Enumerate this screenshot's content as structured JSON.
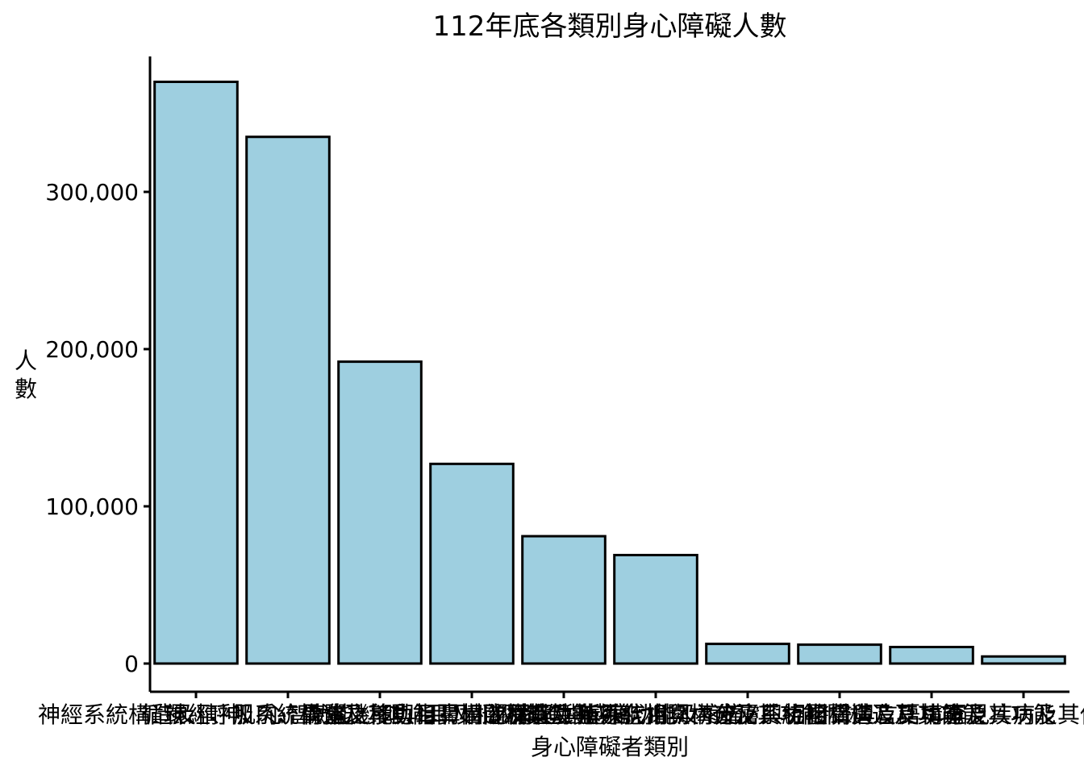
{
  "chart_data": {
    "type": "bar",
    "title": "112年底各類別身心障礙人數",
    "xlabel": "身心障礙者類別",
    "ylabel": "人數",
    "categories": [
      "神經系統構造及精神、心智功能",
      "循環、呼吸系統構造及其功能",
      "神經、肌肉、骨骼之移動相關構造及其功能",
      "聽覺機能與耳鼻相關構造及其功能",
      "眼、耳及相關構造與感官功能及疼痛",
      "泌尿與生殖系統相關構造及其功能",
      "消化、新陳代謝與內分泌系統相關構造及其功能",
      "皮膚與相關構造及其功能",
      "發聲與言語構造及其功能",
      "罕見疾病及其他"
    ],
    "values": [
      370000,
      335000,
      192000,
      127000,
      81000,
      69000,
      12500,
      12000,
      10500,
      4500
    ],
    "ylim": [
      0,
      380000
    ],
    "yticks": [
      0,
      100000,
      200000,
      300000
    ],
    "ytick_labels": [
      "0",
      "100,000",
      "200,000",
      "300,000"
    ],
    "grid": false,
    "legend": "none",
    "colors": {
      "bar_fill": "#9ECFE0",
      "bar_stroke": "#000000"
    }
  }
}
